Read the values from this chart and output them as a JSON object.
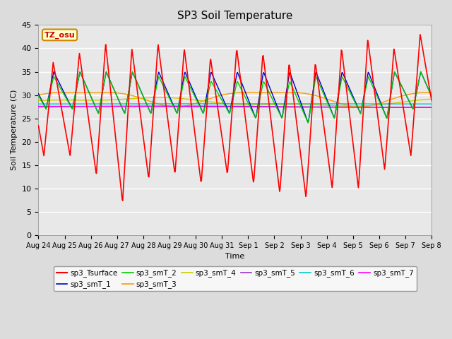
{
  "title": "SP3 Soil Temperature",
  "ylabel": "Soil Temperature (C)",
  "xlabel": "Time",
  "ylim": [
    0,
    45
  ],
  "annotation_text": "TZ_osu",
  "background_color": "#DCDCDC",
  "plot_bg_color": "#E8E8E8",
  "series": {
    "sp3_Tsurface": {
      "color": "#FF0000",
      "lw": 1.2
    },
    "sp3_smT_1": {
      "color": "#0000CC",
      "lw": 1.0
    },
    "sp3_smT_2": {
      "color": "#00CC00",
      "lw": 1.0
    },
    "sp3_smT_3": {
      "color": "#FF9900",
      "lw": 1.0
    },
    "sp3_smT_4": {
      "color": "#CCCC00",
      "lw": 1.0
    },
    "sp3_smT_5": {
      "color": "#9933CC",
      "lw": 1.0
    },
    "sp3_smT_6": {
      "color": "#00CCCC",
      "lw": 1.0
    },
    "sp3_smT_7": {
      "color": "#FF00FF",
      "lw": 1.0
    }
  },
  "xtick_labels": [
    "Aug 24",
    "Aug 25",
    "Aug 26",
    "Aug 27",
    "Aug 28",
    "Aug 29",
    "Aug 30",
    "Aug 31",
    "Sep 1",
    "Sep 2",
    "Sep 3",
    "Sep 4",
    "Sep 5",
    "Sep 6",
    "Sep 7",
    "Sep 8"
  ],
  "grid_color": "#FFFFFF",
  "grid_lw": 1.0,
  "yticks": [
    0,
    5,
    10,
    15,
    20,
    25,
    30,
    35,
    40,
    45
  ]
}
